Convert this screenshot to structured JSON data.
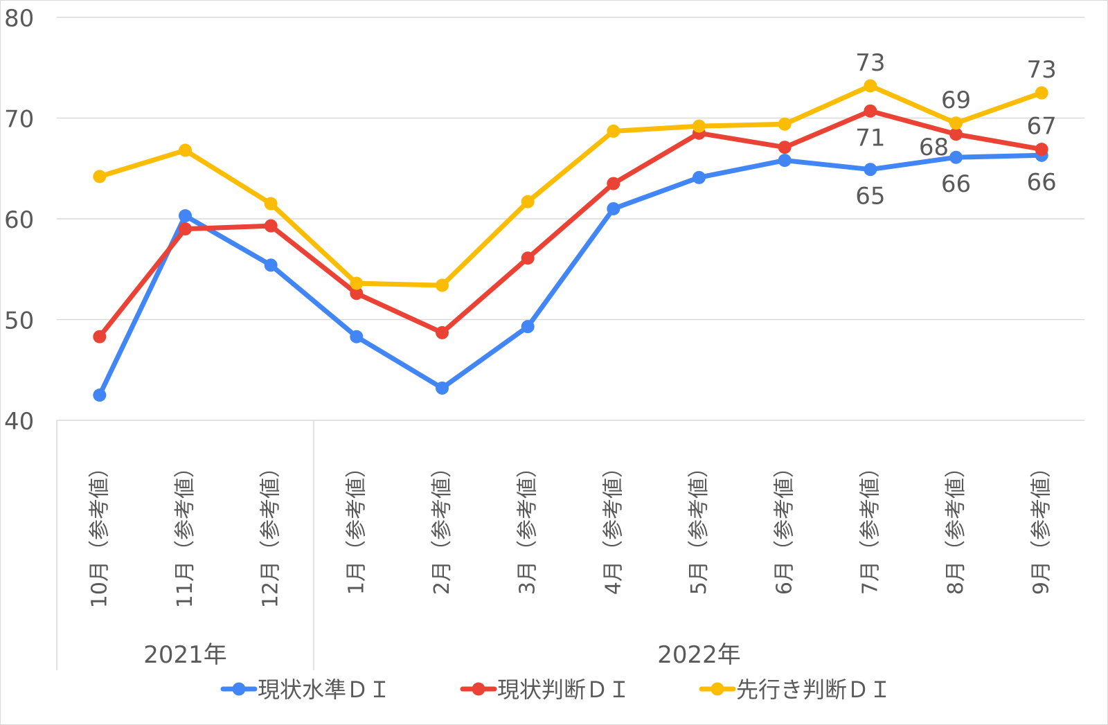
{
  "chart_data": {
    "type": "line",
    "title": "",
    "xlabel": "",
    "ylabel": "",
    "ylim": [
      40,
      80
    ],
    "yticks": [
      "40",
      "50",
      "60",
      "70",
      "80"
    ],
    "grid": true,
    "legend_position": "bottom",
    "categories": [
      "10月（参考値）",
      "11月（参考値）",
      "12月（参考値）",
      "1月（参考値）",
      "2月（参考値）",
      "3月（参考値）",
      "4月（参考値）",
      "5月（参考値）",
      "6月（参考値）",
      "7月（参考値）",
      "8月（参考値）",
      "9月（参考値）"
    ],
    "year_groups": [
      {
        "label": "2021年",
        "count": 3
      },
      {
        "label": "2022年",
        "count": 9
      }
    ],
    "series": [
      {
        "name": "現状水準ＤＩ",
        "color": "#4285f4",
        "values": [
          42.5,
          60.3,
          55.4,
          48.3,
          43.2,
          49.3,
          61.0,
          64.1,
          65.8,
          64.9,
          66.1,
          66.3
        ],
        "labels": [
          {
            "index": 9,
            "text": "65",
            "pos": "below"
          },
          {
            "index": 10,
            "text": "66",
            "pos": "below"
          },
          {
            "index": 11,
            "text": "66",
            "pos": "below"
          }
        ]
      },
      {
        "name": "現状判断ＤＩ",
        "color": "#ea4335",
        "values": [
          48.3,
          59.0,
          59.3,
          52.6,
          48.7,
          56.1,
          63.5,
          68.5,
          67.1,
          70.7,
          68.4,
          66.9
        ],
        "labels": [
          {
            "index": 9,
            "text": "71",
            "pos": "below"
          },
          {
            "index": 10,
            "text": "68",
            "pos": "leftbelow"
          },
          {
            "index": 11,
            "text": "67",
            "pos": "above"
          }
        ]
      },
      {
        "name": "先行き判断ＤＩ",
        "color": "#fbbc04",
        "values": [
          64.2,
          66.8,
          61.5,
          53.6,
          53.4,
          61.7,
          68.7,
          69.2,
          69.4,
          73.2,
          69.5,
          72.5
        ],
        "labels": [
          {
            "index": 9,
            "text": "73",
            "pos": "above"
          },
          {
            "index": 10,
            "text": "69",
            "pos": "above"
          },
          {
            "index": 11,
            "text": "73",
            "pos": "above"
          }
        ]
      }
    ]
  }
}
